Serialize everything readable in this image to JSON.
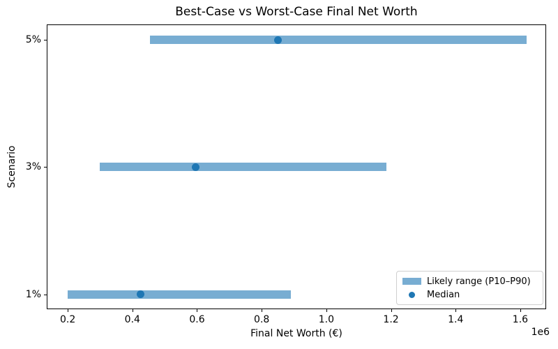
{
  "chart_data": {
    "type": "bar",
    "orientation": "horizontal",
    "title": "Best-Case vs Worst-Case Final Net Worth",
    "xlabel": "Final Net Worth (€)",
    "ylabel": "Scenario",
    "x_offset_text": "1e6",
    "xlim": [
      135000,
      1680000
    ],
    "grid": false,
    "legend_position": "lower right",
    "x_ticks": [
      {
        "value": 200000,
        "label": "0.2"
      },
      {
        "value": 400000,
        "label": "0.4"
      },
      {
        "value": 600000,
        "label": "0.6"
      },
      {
        "value": 800000,
        "label": "0.8"
      },
      {
        "value": 1000000,
        "label": "1.0"
      },
      {
        "value": 1200000,
        "label": "1.2"
      },
      {
        "value": 1400000,
        "label": "1.4"
      },
      {
        "value": 1600000,
        "label": "1.6"
      }
    ],
    "rows": [
      {
        "label": "5%",
        "p10": 455000,
        "median": 850000,
        "p90": 1620000
      },
      {
        "label": "3%",
        "p10": 300000,
        "median": 595000,
        "p90": 1185000
      },
      {
        "label": "1%",
        "p10": 200000,
        "median": 425000,
        "p90": 890000
      }
    ],
    "legend": [
      {
        "swatch": "patch",
        "label": "Likely range (P10–P90)"
      },
      {
        "swatch": "dot",
        "label": "Median"
      }
    ],
    "colors": {
      "range_fill": "#78add2",
      "median": "#1f77b4",
      "spine": "#000000",
      "text": "#000000"
    }
  }
}
